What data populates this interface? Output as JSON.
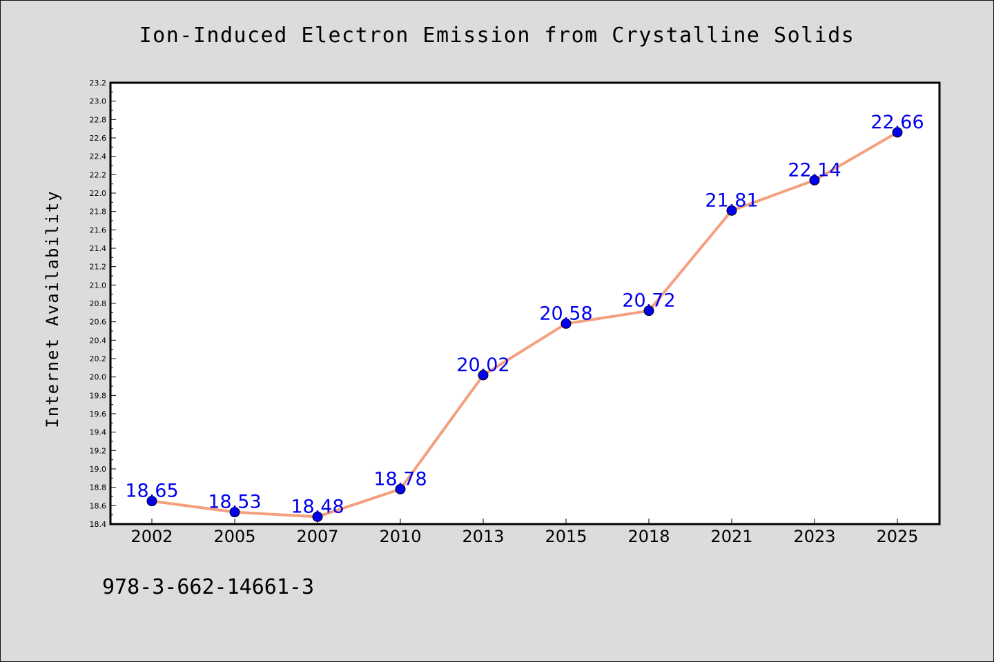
{
  "footer_text": "978-3-662-14661-3",
  "chart_data": {
    "type": "line",
    "title": "Ion-Induced Electron Emission from Crystalline Solids",
    "xlabel": "",
    "ylabel": "Internet Availability",
    "categories": [
      "2002",
      "2005",
      "2007",
      "2010",
      "2013",
      "2015",
      "2018",
      "2021",
      "2023",
      "2025"
    ],
    "values": [
      18.65,
      18.53,
      18.48,
      18.78,
      20.02,
      20.58,
      20.72,
      21.81,
      22.14,
      22.66
    ],
    "data_labels": [
      "18.65",
      "18.53",
      "18.48",
      "18.78",
      "20.02",
      "20.58",
      "20.72",
      "21.81",
      "22.14",
      "22.66"
    ],
    "ylim": [
      18.4,
      23.2
    ],
    "yticks": [
      "18.4",
      "18.6",
      "18.8",
      "19.0",
      "19.2",
      "19.4",
      "19.6",
      "19.8",
      "20.0",
      "20.2",
      "20.4",
      "20.6",
      "20.8",
      "21.0",
      "21.2",
      "21.4",
      "21.6",
      "21.8",
      "22.0",
      "22.2",
      "22.4",
      "22.6",
      "22.8",
      "23.0",
      "23.2"
    ],
    "grid": false,
    "line_color": "#f4a07f",
    "marker_color": "#0000ee",
    "label_color": "#0000ee"
  }
}
